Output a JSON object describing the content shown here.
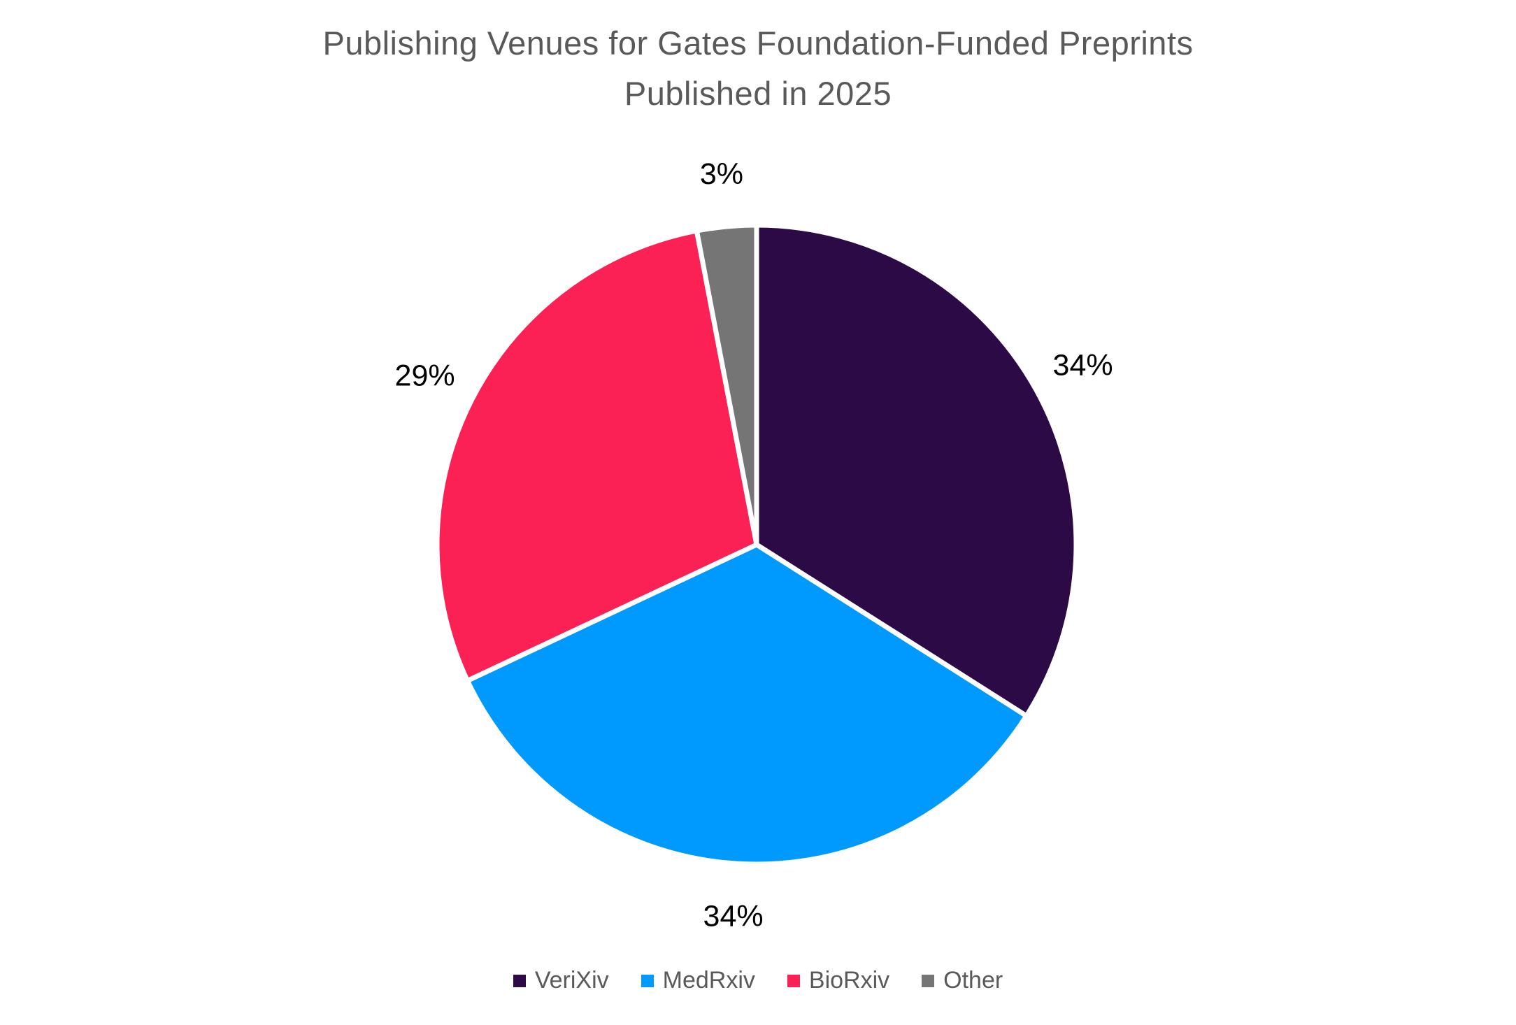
{
  "chart_data": {
    "type": "pie",
    "title": "Publishing Venues for Gates Foundation-Funded Preprints Published in 2025",
    "title_lines": [
      "Publishing Venues for Gates Foundation-Funded Preprints",
      "Published in 2025"
    ],
    "categories": [
      "VeriXiv",
      "MedRxiv",
      "BioRxiv",
      "Other"
    ],
    "values": [
      34,
      34,
      29,
      3
    ],
    "labels": [
      "34%",
      "34%",
      "29%",
      "3%"
    ],
    "colors": [
      "#2B0A45",
      "#0099FE",
      "#FB2155",
      "#757575"
    ],
    "start_angle_deg": 0,
    "direction": "clockwise",
    "legend_position": "bottom",
    "slice_border_color": "#FFFFFF",
    "label_color": "#000000",
    "title_color": "#595959",
    "legend_text_color": "#595959"
  }
}
